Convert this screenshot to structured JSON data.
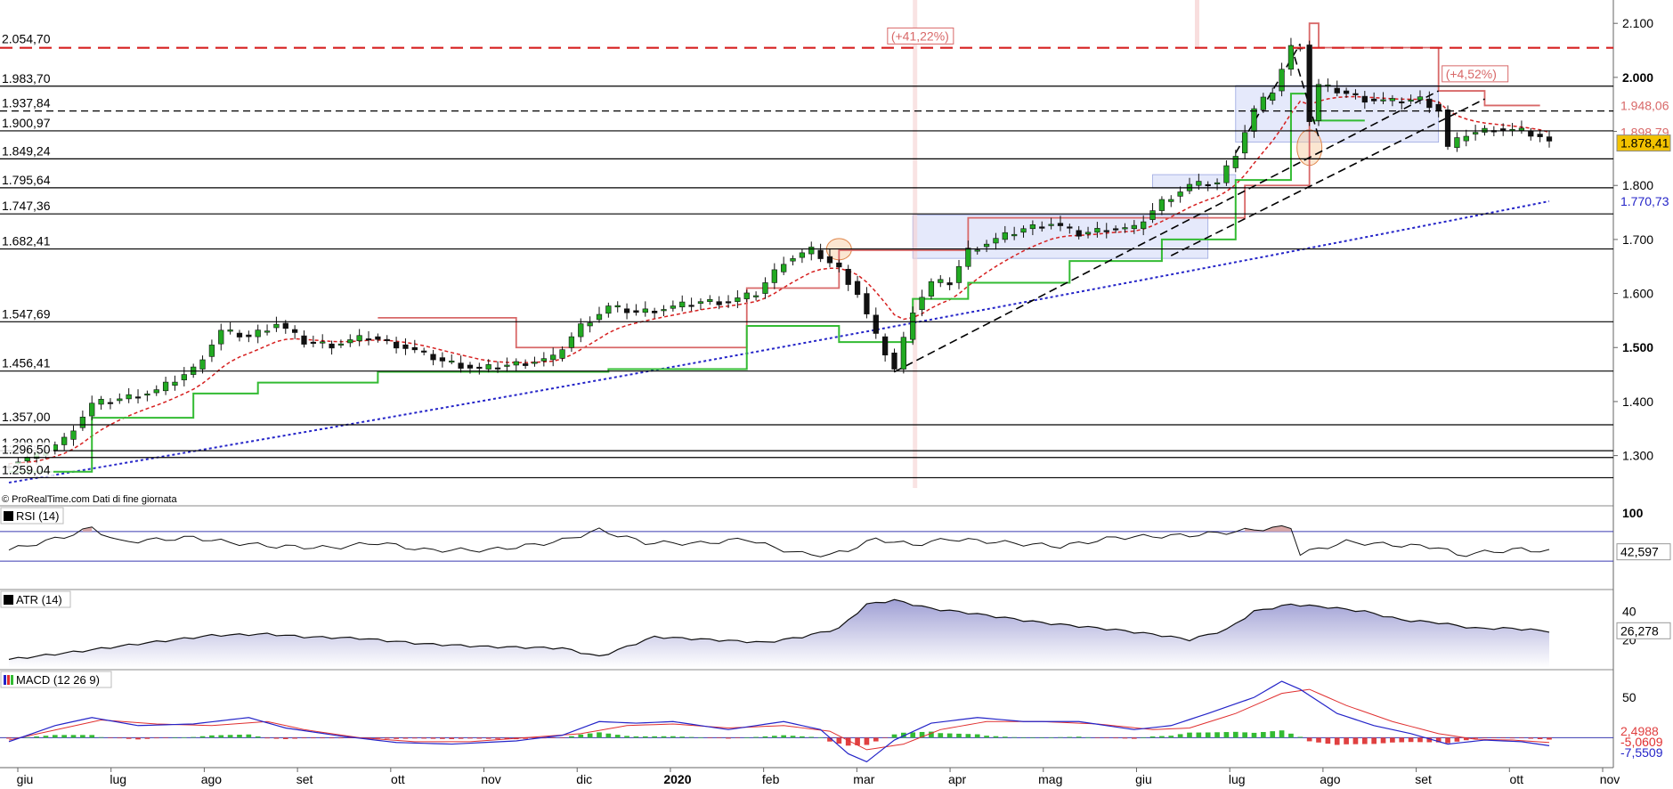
{
  "source_note": "© ProRealTime.com  Dati di fine giornata",
  "colors": {
    "up_candle": "#22aa22",
    "down_candle": "#111111",
    "resistance_red": "#d62020",
    "trail_red": "#d86868",
    "trail_green": "#33bb33",
    "ma_blue": "#2424c8",
    "macd_line": "#2424c8",
    "signal_line": "#e03030",
    "hist_pos": "#33bb33",
    "hist_neg": "#e04040",
    "rsi_fill": "#d8a8a8",
    "atr_fill": "#9a9ad2",
    "last_price_bg": "#f2c200"
  },
  "icons": {
    "rsi": "black-square-icon",
    "atr": "black-square-icon",
    "macd": "color-bars-icon"
  },
  "chart_data": [
    {
      "type": "candlestick",
      "role": "price",
      "title": "",
      "ylim": [
        1240,
        2130
      ],
      "y_ticks": [
        "2.100",
        "2.000",
        "1.900",
        "1.800",
        "1.700",
        "1.600",
        "1.500",
        "1.400",
        "1.300"
      ],
      "y_ticks_bold": [
        "2.000",
        "1.500"
      ],
      "x_labels": [
        "giu",
        "lug",
        "ago",
        "set",
        "ott",
        "nov",
        "dic",
        "2020",
        "feb",
        "mar",
        "apr",
        "mag",
        "giu",
        "lug",
        "ago",
        "set",
        "ott",
        "nov"
      ],
      "x_labels_bold": [
        "2020"
      ],
      "x_range": [
        "2019-06",
        "2020-11"
      ],
      "resistance_dashed": {
        "value": 2054.7,
        "label": "2.054,70"
      },
      "horizontal_levels": [
        {
          "value": 1983.7,
          "label": "1.983,70"
        },
        {
          "value": 1937.84,
          "label": "1.937,84",
          "style": "dashed"
        },
        {
          "value": 1900.97,
          "label": "1.900,97"
        },
        {
          "value": 1849.24,
          "label": "1.849,24"
        },
        {
          "value": 1795.64,
          "label": "1.795,64"
        },
        {
          "value": 1747.36,
          "label": "1.747,36"
        },
        {
          "value": 1682.41,
          "label": "1.682,41"
        },
        {
          "value": 1547.69,
          "label": "1.547,69"
        },
        {
          "value": 1456.41,
          "label": "1.456,41"
        },
        {
          "value": 1357.0,
          "label": "1.357,00"
        },
        {
          "value": 1309.0,
          "label": "1.309,00"
        },
        {
          "value": 1296.5,
          "label": "1.296,50"
        },
        {
          "value": 1259.04,
          "label": "1.259,04"
        }
      ],
      "annotations": [
        {
          "text": "(+41,22%)",
          "x": "2020-03-25"
        },
        {
          "text": "(+4,52%)",
          "x": "2020-09-25"
        }
      ],
      "right_tags": [
        {
          "value": 1948.06,
          "label": "1.948,06",
          "color": "#d86868"
        },
        {
          "value": 1898.79,
          "label": "1.898,79",
          "color": "#d86868"
        },
        {
          "value": 1878.41,
          "label": "1.878,41",
          "color": "#000000",
          "bg": "#f2c200"
        },
        {
          "value": 1770.73,
          "label": "1.770,73",
          "color": "#2424c8"
        }
      ],
      "price_path_anchors": [
        [
          0,
          1285
        ],
        [
          3,
          1300
        ],
        [
          6,
          1330
        ],
        [
          9,
          1395
        ],
        [
          12,
          1405
        ],
        [
          16,
          1420
        ],
        [
          20,
          1460
        ],
        [
          23,
          1530
        ],
        [
          26,
          1520
        ],
        [
          29,
          1545
        ],
        [
          32,
          1510
        ],
        [
          35,
          1505
        ],
        [
          39,
          1520
        ],
        [
          43,
          1500
        ],
        [
          47,
          1475
        ],
        [
          51,
          1460
        ],
        [
          55,
          1470
        ],
        [
          59,
          1480
        ],
        [
          62,
          1540
        ],
        [
          65,
          1575
        ],
        [
          68,
          1565
        ],
        [
          72,
          1575
        ],
        [
          75,
          1585
        ],
        [
          78,
          1585
        ],
        [
          81,
          1600
        ],
        [
          84,
          1660
        ],
        [
          87,
          1680
        ],
        [
          90,
          1645
        ],
        [
          92,
          1600
        ],
        [
          94,
          1520
        ],
        [
          96,
          1460
        ],
        [
          98,
          1570
        ],
        [
          100,
          1620
        ],
        [
          102,
          1620
        ],
        [
          104,
          1680
        ],
        [
          107,
          1700
        ],
        [
          110,
          1720
        ],
        [
          113,
          1730
        ],
        [
          116,
          1710
        ],
        [
          119,
          1720
        ],
        [
          122,
          1720
        ],
        [
          125,
          1770
        ],
        [
          128,
          1800
        ],
        [
          131,
          1805
        ],
        [
          133,
          1860
        ],
        [
          135,
          1940
        ],
        [
          137,
          1975
        ],
        [
          139,
          2055
        ],
        [
          140,
          2060
        ],
        [
          141,
          1920
        ],
        [
          142,
          1985
        ],
        [
          144,
          1975
        ],
        [
          147,
          1960
        ],
        [
          150,
          1955
        ],
        [
          153,
          1960
        ],
        [
          155,
          1940
        ],
        [
          156,
          1870
        ],
        [
          158,
          1895
        ],
        [
          161,
          1905
        ],
        [
          164,
          1900
        ],
        [
          166,
          1890
        ],
        [
          167,
          1878
        ]
      ],
      "series_sma200": {
        "name": "",
        "from": 1250,
        "to": 1770.73
      },
      "series_trail_red": [
        [
          40,
          1555
        ],
        [
          55,
          1500
        ],
        [
          68,
          1500
        ],
        [
          80,
          1610
        ],
        [
          90,
          1680
        ],
        [
          97,
          1680
        ],
        [
          104,
          1740
        ],
        [
          134,
          1800
        ],
        [
          141,
          2100
        ],
        [
          142,
          2055
        ],
        [
          150,
          2055
        ],
        [
          155,
          1975
        ],
        [
          160,
          1948
        ]
      ],
      "series_trail_green": [
        [
          0,
          1270
        ],
        [
          9,
          1370
        ],
        [
          20,
          1415
        ],
        [
          27,
          1435
        ],
        [
          40,
          1455
        ],
        [
          65,
          1460
        ],
        [
          80,
          1540
        ],
        [
          90,
          1510
        ],
        [
          98,
          1590
        ],
        [
          104,
          1620
        ],
        [
          115,
          1660
        ],
        [
          125,
          1700
        ],
        [
          133,
          1810
        ],
        [
          139,
          1970
        ],
        [
          141,
          1920
        ]
      ],
      "consolidation_boxes": [
        {
          "x0": 98,
          "x1": 130,
          "y0": 1665,
          "y1": 1745
        },
        {
          "x0": 124,
          "x1": 133,
          "y0": 1795,
          "y1": 1820
        },
        {
          "x0": 133,
          "x1": 155,
          "y0": 1880,
          "y1": 1985
        }
      ]
    },
    {
      "type": "line",
      "role": "rsi",
      "title": "RSI (14)",
      "ylim": [
        0,
        100
      ],
      "y_ticks": [
        "100"
      ],
      "upper_band": 70,
      "lower_band": 30,
      "last_value": "42,597",
      "anchors": [
        [
          0,
          45
        ],
        [
          6,
          63
        ],
        [
          9,
          75
        ],
        [
          12,
          56
        ],
        [
          20,
          62
        ],
        [
          24,
          55
        ],
        [
          29,
          50
        ],
        [
          35,
          48
        ],
        [
          40,
          55
        ],
        [
          45,
          45
        ],
        [
          52,
          45
        ],
        [
          57,
          52
        ],
        [
          60,
          58
        ],
        [
          64,
          72
        ],
        [
          69,
          55
        ],
        [
          75,
          54
        ],
        [
          80,
          60
        ],
        [
          83,
          48
        ],
        [
          86,
          40
        ],
        [
          89,
          38
        ],
        [
          91,
          45
        ],
        [
          94,
          60
        ],
        [
          98,
          52
        ],
        [
          102,
          60
        ],
        [
          108,
          55
        ],
        [
          114,
          50
        ],
        [
          120,
          62
        ],
        [
          128,
          65
        ],
        [
          133,
          70
        ],
        [
          136,
          74
        ],
        [
          139,
          76
        ],
        [
          140,
          40
        ],
        [
          145,
          56
        ],
        [
          150,
          52
        ],
        [
          155,
          49
        ],
        [
          157,
          38
        ],
        [
          160,
          42
        ],
        [
          164,
          46
        ],
        [
          167,
          43
        ]
      ]
    },
    {
      "type": "area",
      "role": "atr",
      "title": "ATR (14)",
      "y_ticks": [
        "40",
        "20"
      ],
      "ylim": [
        0,
        53
      ],
      "last_value": "26,278",
      "anchors": [
        [
          0,
          6
        ],
        [
          8,
          12
        ],
        [
          14,
          17
        ],
        [
          22,
          23
        ],
        [
          28,
          24
        ],
        [
          32,
          22
        ],
        [
          38,
          21
        ],
        [
          45,
          17
        ],
        [
          52,
          15
        ],
        [
          60,
          14
        ],
        [
          64,
          8
        ],
        [
          70,
          22
        ],
        [
          76,
          20
        ],
        [
          82,
          18
        ],
        [
          86,
          22
        ],
        [
          90,
          28
        ],
        [
          93,
          45
        ],
        [
          96,
          48
        ],
        [
          100,
          42
        ],
        [
          104,
          39
        ],
        [
          112,
          32
        ],
        [
          120,
          27
        ],
        [
          125,
          23
        ],
        [
          128,
          20
        ],
        [
          132,
          27
        ],
        [
          135,
          40
        ],
        [
          139,
          45
        ],
        [
          143,
          43
        ],
        [
          147,
          40
        ],
        [
          151,
          34
        ],
        [
          155,
          32
        ],
        [
          159,
          28
        ],
        [
          163,
          28
        ],
        [
          167,
          26
        ]
      ]
    },
    {
      "type": "line",
      "role": "macd",
      "title": "MACD (12 26 9)",
      "y_ticks": [
        "50"
      ],
      "ylim": [
        -35,
        80
      ],
      "last_values": [
        "2,4988",
        "-5,0609",
        "-7,5509"
      ],
      "macd_anchors": [
        [
          0,
          -5
        ],
        [
          5,
          15
        ],
        [
          9,
          25
        ],
        [
          14,
          15
        ],
        [
          20,
          17
        ],
        [
          26,
          25
        ],
        [
          30,
          12
        ],
        [
          36,
          2
        ],
        [
          42,
          -6
        ],
        [
          48,
          -8
        ],
        [
          55,
          -4
        ],
        [
          60,
          3
        ],
        [
          64,
          20
        ],
        [
          68,
          18
        ],
        [
          72,
          20
        ],
        [
          78,
          10
        ],
        [
          84,
          20
        ],
        [
          88,
          10
        ],
        [
          91,
          -20
        ],
        [
          93,
          -30
        ],
        [
          96,
          -3
        ],
        [
          100,
          18
        ],
        [
          105,
          25
        ],
        [
          110,
          20
        ],
        [
          116,
          20
        ],
        [
          122,
          10
        ],
        [
          126,
          15
        ],
        [
          130,
          30
        ],
        [
          135,
          50
        ],
        [
          138,
          70
        ],
        [
          140,
          60
        ],
        [
          144,
          30
        ],
        [
          148,
          15
        ],
        [
          152,
          5
        ],
        [
          156,
          -8
        ],
        [
          160,
          -3
        ],
        [
          164,
          -5
        ],
        [
          167,
          -10
        ]
      ],
      "signal_anchors": [
        [
          0,
          -3
        ],
        [
          6,
          12
        ],
        [
          10,
          22
        ],
        [
          16,
          17
        ],
        [
          22,
          15
        ],
        [
          28,
          20
        ],
        [
          32,
          10
        ],
        [
          38,
          0
        ],
        [
          44,
          -5
        ],
        [
          50,
          -5
        ],
        [
          56,
          0
        ],
        [
          62,
          5
        ],
        [
          67,
          15
        ],
        [
          72,
          17
        ],
        [
          78,
          12
        ],
        [
          84,
          15
        ],
        [
          89,
          8
        ],
        [
          93,
          -15
        ],
        [
          97,
          -8
        ],
        [
          101,
          10
        ],
        [
          106,
          20
        ],
        [
          112,
          20
        ],
        [
          118,
          17
        ],
        [
          124,
          10
        ],
        [
          128,
          12
        ],
        [
          133,
          30
        ],
        [
          138,
          55
        ],
        [
          141,
          60
        ],
        [
          145,
          40
        ],
        [
          150,
          20
        ],
        [
          155,
          5
        ],
        [
          159,
          -2
        ],
        [
          163,
          -3
        ],
        [
          167,
          -6
        ]
      ]
    }
  ]
}
